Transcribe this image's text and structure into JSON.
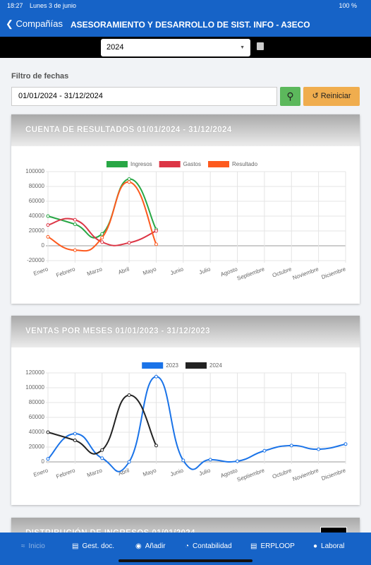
{
  "status_bar": {
    "time": "18:27",
    "date": "Lunes 3 de junio",
    "battery": "100 %"
  },
  "header": {
    "back": "Compañías",
    "title": "ASESORAMIENTO Y DESARROLLO DE SIST. INFO - A3ECO"
  },
  "year_select": {
    "value": "2024"
  },
  "filter": {
    "label": "Filtro de fechas",
    "range": "01/01/2024 - 31/12/2024",
    "reset": "Reiniciar"
  },
  "chart_data": [
    {
      "type": "line",
      "title": "CUENTA DE RESULTADOS 01/01/2024 - 31/12/2024",
      "categories": [
        "Enero",
        "Febrero",
        "Marzo",
        "Abril",
        "Mayo",
        "Junio",
        "Julio",
        "Agosto",
        "Septiembre",
        "Octubre",
        "Noviembre",
        "Diciembre"
      ],
      "series": [
        {
          "name": "Ingresos",
          "color": "#28a745",
          "values": [
            40000,
            29000,
            16000,
            90000,
            22000,
            null,
            null,
            null,
            null,
            null,
            null,
            null
          ]
        },
        {
          "name": "Gastos",
          "color": "#dc3545",
          "values": [
            28000,
            35000,
            5000,
            4000,
            20000,
            null,
            null,
            null,
            null,
            null,
            null,
            null
          ]
        },
        {
          "name": "Resultado",
          "color": "#fd5a1e",
          "values": [
            12000,
            -6000,
            11000,
            86000,
            2000,
            null,
            null,
            null,
            null,
            null,
            null,
            null
          ]
        }
      ],
      "ylim": [
        -20000,
        100000
      ],
      "yticks": [
        -20000,
        0,
        20000,
        40000,
        60000,
        80000,
        100000
      ],
      "grid": true
    },
    {
      "type": "line",
      "title": "VENTAS POR MESES 01/01/2023 - 31/12/2023",
      "categories": [
        "Enero",
        "Febrero",
        "Marzo",
        "Abril",
        "Mayo",
        "Junio",
        "Julio",
        "Agosto",
        "Septiembre",
        "Octubre",
        "Noviembre",
        "Diciembre"
      ],
      "series": [
        {
          "name": "2023",
          "color": "#1a73e8",
          "values": [
            4000,
            38000,
            5000,
            0,
            115000,
            2000,
            3000,
            1000,
            15000,
            22000,
            17000,
            24000
          ]
        },
        {
          "name": "2024",
          "color": "#222222",
          "values": [
            40000,
            29000,
            16000,
            90000,
            22000,
            null,
            null,
            null,
            null,
            null,
            null,
            null
          ]
        }
      ],
      "ylim": [
        0,
        120000
      ],
      "yticks": [
        0,
        20000,
        40000,
        60000,
        80000,
        100000,
        120000
      ],
      "grid": true
    }
  ],
  "partial_card": {
    "title": "DISTRIBUCIÓN DE INGRESOS 01/01/2024"
  },
  "nav": [
    "Inicio",
    "Gest. doc.",
    "Añadir",
    "Contabilidad",
    "ERPLOOP",
    "Laboral"
  ]
}
